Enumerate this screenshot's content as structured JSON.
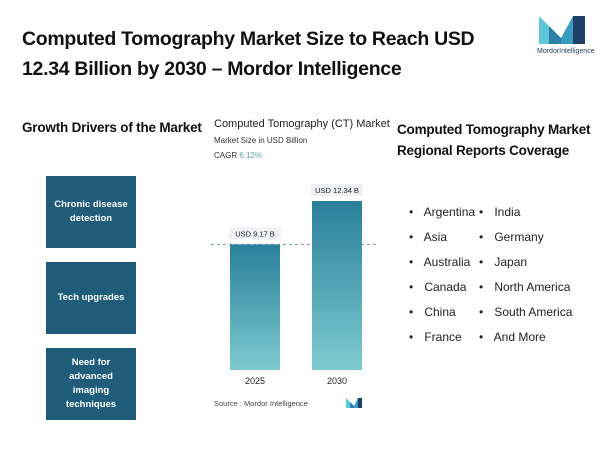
{
  "title": "Computed Tomography Market Size to Reach USD 12.34 Billion by 2030 – Mordor Intelligence",
  "logo": {
    "text": "MordorIntelligence",
    "colors": [
      "#5ec8d8",
      "#2a7fa8",
      "#1f3f66"
    ]
  },
  "drivers": {
    "title": "Growth Drivers of the Market",
    "items": [
      "Chronic disease detection",
      "Tech upgrades",
      "Need for advanced imaging techniques"
    ],
    "box_color": "#1f5c7a"
  },
  "chart": {
    "title": "Computed Tomography (CT) Market",
    "subtitle": "Market Size in USD Billion",
    "cagr_label": "CAGR",
    "cagr_value": "6.12%",
    "source": "Source : Mordor Intelligence"
  },
  "chart_data": {
    "type": "bar",
    "title": "Computed Tomography (CT) Market",
    "ylabel": "Market Size in USD Billion",
    "categories": [
      "2025",
      "2030"
    ],
    "values": [
      9.17,
      12.34
    ],
    "data_labels": [
      "USD 9.17 B",
      "USD 12.34 B"
    ],
    "ylim": [
      0,
      12.34
    ],
    "grid": false,
    "bar_gradient": [
      "#2a7f9a",
      "#7ecad0"
    ],
    "reference_line": {
      "value": 9.17,
      "style": "dashed"
    }
  },
  "regions": {
    "title": "Computed Tomography Market Regional Reports Coverage",
    "col1": [
      "Argentina",
      "Asia",
      "Australia",
      "Canada",
      "China",
      "France"
    ],
    "col2": [
      "India",
      "Germany",
      "Japan",
      "North America",
      "South America",
      "And More"
    ]
  }
}
